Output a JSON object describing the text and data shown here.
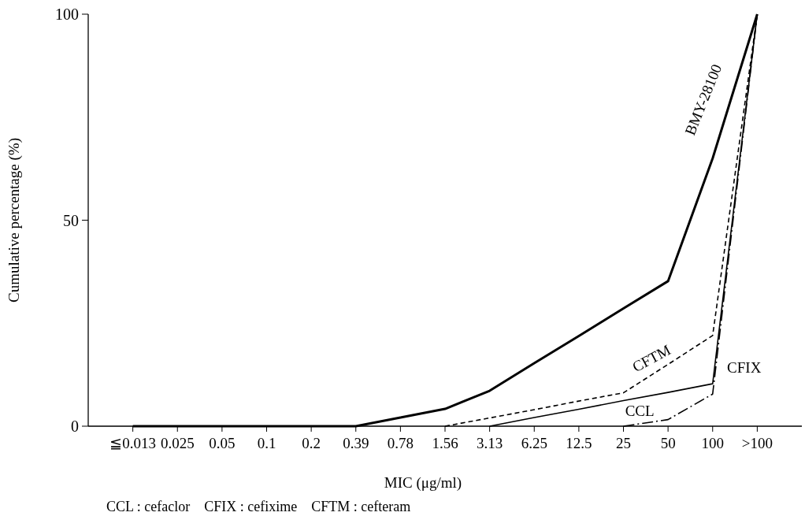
{
  "chart_data": {
    "type": "line",
    "xlabel": "MIC (μg/ml)",
    "ylabel": "Cumulative percentage (%)",
    "categories": [
      "≦0.013",
      "0.025",
      "0.05",
      "0.1",
      "0.2",
      "0.39",
      "0.78",
      "1.56",
      "3.13",
      "6.25",
      "12.5",
      "25",
      "50",
      "100",
      ">100"
    ],
    "ylim": [
      0,
      100
    ],
    "yticks": [
      0,
      50,
      100
    ],
    "grid": false,
    "marker": "none",
    "series": [
      {
        "name": "BMY-28100",
        "color": "#000000",
        "line_style": "solid",
        "values": [
          0,
          0,
          0,
          0,
          0,
          0,
          2.1,
          4.2,
          8.6,
          15.3,
          21.9,
          28.6,
          35.2,
          65,
          100
        ]
      },
      {
        "name": "CFTM",
        "color": "#000000",
        "line_style": "dashed",
        "values": [
          null,
          null,
          null,
          null,
          null,
          null,
          null,
          0,
          2,
          4,
          6.1,
          8.1,
          15,
          22,
          100
        ]
      },
      {
        "name": "CCL",
        "color": "#000000",
        "line_style": "solid",
        "values": [
          null,
          null,
          null,
          null,
          null,
          null,
          null,
          null,
          0,
          2.1,
          4.1,
          6.2,
          8.2,
          10.3,
          100
        ]
      },
      {
        "name": "CFIX",
        "color": "#000000",
        "line_style": "dashdot",
        "values": [
          null,
          null,
          null,
          null,
          null,
          null,
          null,
          null,
          null,
          null,
          null,
          0,
          1.6,
          7.8,
          100
        ]
      }
    ],
    "annotations": [
      "CCL : cefaclor    CFIX : cefixime    CFTM : cefteram"
    ]
  }
}
